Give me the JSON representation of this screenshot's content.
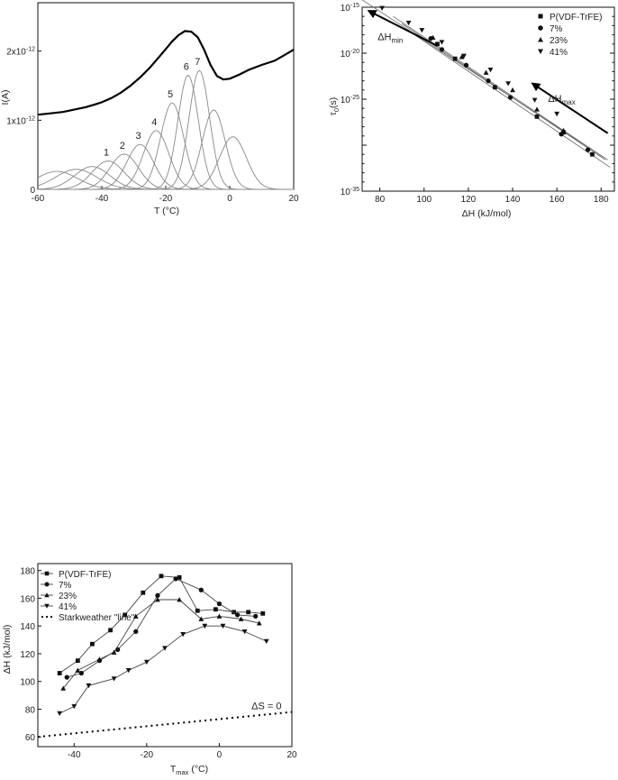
{
  "chart_data": [
    {
      "type": "line",
      "xlabel": "T (°C)",
      "ylabel": "I(A)",
      "xlim": [
        -60,
        20
      ],
      "ylim": [
        0,
        2.7e-12
      ],
      "x_ticks": [
        "-60",
        "-40",
        "-20",
        "0",
        "20"
      ],
      "y_ticks": [
        {
          "base": "0",
          "sup": ""
        },
        {
          "base": "1x10",
          "sup": "-12"
        },
        {
          "base": "2x10",
          "sup": "-12"
        }
      ],
      "peak_labels": [
        "1",
        "2",
        "3",
        "4",
        "5",
        "6",
        "7"
      ],
      "series": [
        {
          "kind": "global",
          "x": [
            -60,
            -56,
            -52,
            -48,
            -45,
            -42,
            -40,
            -37,
            -34,
            -31,
            -28,
            -25,
            -22,
            -20,
            -18,
            -16,
            -14,
            -12,
            -10,
            -8,
            -6,
            -4,
            -2,
            0,
            3,
            6,
            10,
            14,
            17,
            20
          ],
          "y": [
            1.08e-12,
            1.1e-12,
            1.12e-12,
            1.16e-12,
            1.19e-12,
            1.23e-12,
            1.26e-12,
            1.32e-12,
            1.4e-12,
            1.5e-12,
            1.62e-12,
            1.76e-12,
            1.92e-12,
            2.03e-12,
            2.14e-12,
            2.23e-12,
            2.29e-12,
            2.28e-12,
            2.2e-12,
            2.02e-12,
            1.8e-12,
            1.64e-12,
            1.59e-12,
            1.6e-12,
            1.66e-12,
            1.73e-12,
            1.8e-12,
            1.86e-12,
            1.94e-12,
            2.02e-12
          ]
        },
        {
          "kind": "peak",
          "center": -54,
          "height": 2.6e-13,
          "width": 6.5
        },
        {
          "kind": "peak",
          "center": -48,
          "height": 2.9e-13,
          "width": 6.5
        },
        {
          "kind": "peak",
          "center": -43,
          "height": 3.3e-13,
          "width": 5.5
        },
        {
          "kind": "peak",
          "center": -38,
          "height": 4.1e-13,
          "width": 5.0
        },
        {
          "kind": "peak",
          "center": -33,
          "height": 5.1e-13,
          "width": 4.5
        },
        {
          "kind": "peak",
          "center": -28,
          "height": 6.5e-13,
          "width": 4.2
        },
        {
          "kind": "peak",
          "center": -23,
          "height": 8.5e-13,
          "width": 4.0
        },
        {
          "kind": "peak",
          "center": -18,
          "height": 1.25e-12,
          "width": 3.6
        },
        {
          "kind": "peak",
          "center": -13,
          "height": 1.65e-12,
          "width": 3.2
        },
        {
          "kind": "peak",
          "center": -9.5,
          "height": 1.72e-12,
          "width": 3.2
        },
        {
          "kind": "peak",
          "center": -5,
          "height": 1.15e-12,
          "width": 3.6
        },
        {
          "kind": "peak",
          "center": 1,
          "height": 7.6e-13,
          "width": 4.2
        }
      ]
    },
    {
      "type": "scatter",
      "xlabel": "ΔH (kJ/mol)",
      "ylabel_base": "τ",
      "ylabel_sub": "0",
      "ylabel_rest": "(s)",
      "xlim": [
        72,
        186
      ],
      "ylim_log": [
        -35,
        -15
      ],
      "y_scale": "log",
      "x_ticks": [
        "80",
        "100",
        "120",
        "140",
        "160",
        "180"
      ],
      "y_ticks": [
        {
          "base": "10",
          "sup": "-15"
        },
        {
          "base": "10",
          "sup": "-20"
        },
        {
          "base": "10",
          "sup": "-25"
        }
      ],
      "annotations": [
        {
          "base": "ΔH",
          "sub": "min"
        },
        {
          "base": "ΔH",
          "sub": "max"
        }
      ],
      "legend": [
        "P(VDF-TrFE)",
        "7%",
        "23%",
        "41%"
      ],
      "legend_position": "top-right",
      "series": [
        {
          "marker": "square",
          "x": [
            106,
            114,
            132,
            151,
            163,
            176
          ],
          "y": [
            -19.0,
            -20.6,
            -23.7,
            -26.9,
            -28.6,
            -31.0
          ]
        },
        {
          "marker": "circle",
          "x": [
            103,
            108,
            119,
            129,
            139,
            162,
            174
          ],
          "y": [
            -18.4,
            -19.6,
            -21.3,
            -23.0,
            -24.8,
            -28.8,
            -30.5
          ]
        },
        {
          "marker": "triangle-up",
          "x": [
            104,
            117,
            128,
            140,
            151,
            163
          ],
          "y": [
            -18.3,
            -20.4,
            -22.1,
            -24.0,
            -26.1,
            -28.4
          ]
        },
        {
          "marker": "triangle-down",
          "x": [
            81,
            93,
            99,
            108,
            118,
            130,
            138,
            150,
            160
          ],
          "y": [
            -15.1,
            -16.7,
            -17.5,
            -18.8,
            -20.3,
            -21.8,
            -23.3,
            -25.1,
            -26.6
          ]
        }
      ],
      "fit_lines": [
        {
          "x": [
            72,
            183
          ],
          "y": [
            -14.2,
            -31.6
          ]
        },
        {
          "x": [
            86,
            181
          ],
          "y": [
            -16.0,
            -31.3
          ]
        },
        {
          "x": [
            90,
            182
          ],
          "y": [
            -16.8,
            -31.6
          ]
        },
        {
          "x": [
            92,
            184
          ],
          "y": [
            -17.4,
            -32.4
          ]
        }
      ]
    },
    {
      "type": "line",
      "xlabel_base": "T",
      "xlabel_sub": "max",
      "xlabel_rest": " (°C)",
      "ylabel": "ΔH (kJ/mol)",
      "xlim": [
        -50,
        20
      ],
      "ylim": [
        53,
        185
      ],
      "x_ticks": [
        "-40",
        "-20",
        "0",
        "20"
      ],
      "y_ticks": [
        "60",
        "80",
        "100",
        "120",
        "140",
        "160",
        "180"
      ],
      "legend": [
        "P(VDF-TrFE)",
        "7%",
        "23%",
        "41%",
        "Starkweather \"line\""
      ],
      "legend_position": "top-left",
      "annotation": "ΔS  = 0",
      "series": [
        {
          "name": "P(VDF-TrFE)",
          "marker": "square",
          "x": [
            -44,
            -39,
            -35,
            -30,
            -26,
            -21,
            -16,
            -11,
            -6,
            -1,
            4,
            8,
            12
          ],
          "y": [
            106,
            115,
            127,
            137,
            148,
            164,
            176,
            175,
            151,
            152,
            150,
            150,
            149
          ]
        },
        {
          "name": "7%",
          "marker": "circle",
          "x": [
            -42,
            -38,
            -33,
            -28,
            -23,
            -17,
            -12,
            -5,
            0,
            5,
            10
          ],
          "y": [
            103,
            106,
            115,
            123,
            136,
            162,
            174,
            166,
            156,
            148,
            147
          ]
        },
        {
          "name": "23%",
          "marker": "triangle-up",
          "x": [
            -43,
            -39,
            -33,
            -29,
            -23,
            -17,
            -11,
            -5,
            0,
            6,
            11
          ],
          "y": [
            95,
            108,
            116,
            121,
            147,
            159,
            159,
            145,
            147,
            145,
            142
          ]
        },
        {
          "name": "41%",
          "marker": "triangle-down",
          "x": [
            -44,
            -40,
            -36,
            -29,
            -25,
            -20,
            -15,
            -10,
            -4,
            1,
            7,
            13
          ],
          "y": [
            77,
            82,
            97,
            102,
            108,
            114,
            124,
            134,
            140,
            140,
            136,
            129
          ]
        },
        {
          "name": "Starkweather \"line\"",
          "marker": "none",
          "dashed": true,
          "x": [
            -50,
            20
          ],
          "y": [
            60,
            78
          ]
        }
      ]
    }
  ]
}
